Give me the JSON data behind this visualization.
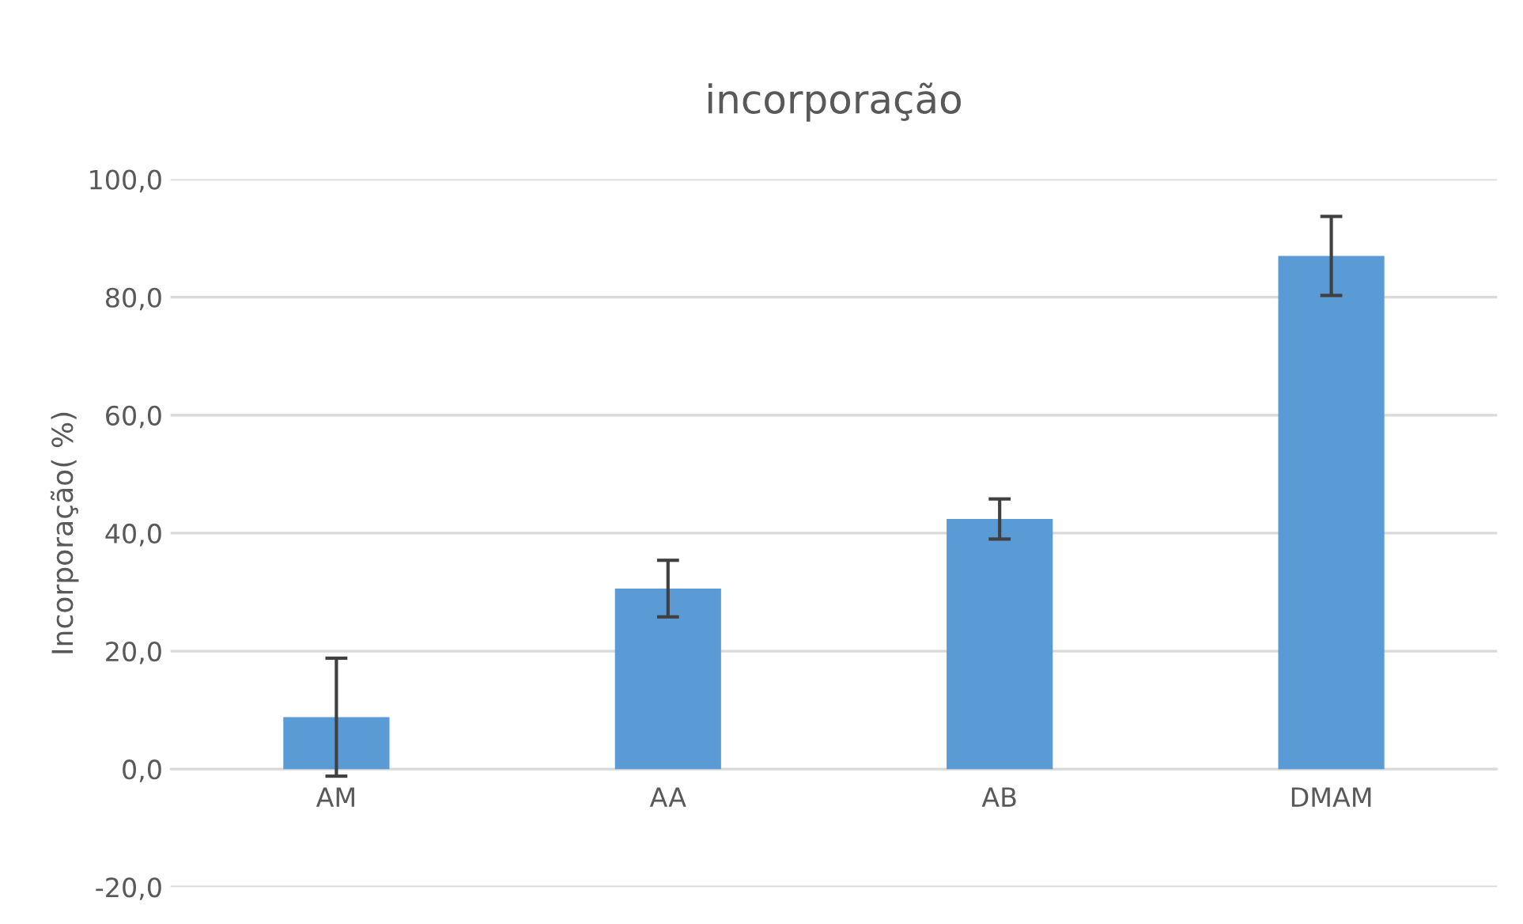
{
  "chart_data": {
    "type": "bar",
    "title": "incorporação",
    "ylabel": "Incorporação( %)",
    "categories": [
      "AM",
      "AA",
      "AB",
      "DMAM"
    ],
    "values": [
      8.8,
      30.6,
      42.4,
      87.0
    ],
    "errors": [
      10.0,
      4.8,
      3.4,
      6.7
    ],
    "color": "#5b9bd5",
    "ylim": [
      -20,
      100
    ],
    "yticks": [
      {
        "value": -20,
        "label": "-20,0"
      },
      {
        "value": 0,
        "label": "0,0"
      },
      {
        "value": 20,
        "label": "20,0"
      },
      {
        "value": 40,
        "label": "40,0"
      },
      {
        "value": 60,
        "label": "60,0"
      },
      {
        "value": 80,
        "label": "80,0"
      },
      {
        "value": 100,
        "label": "100,0"
      }
    ],
    "grid": "y"
  }
}
